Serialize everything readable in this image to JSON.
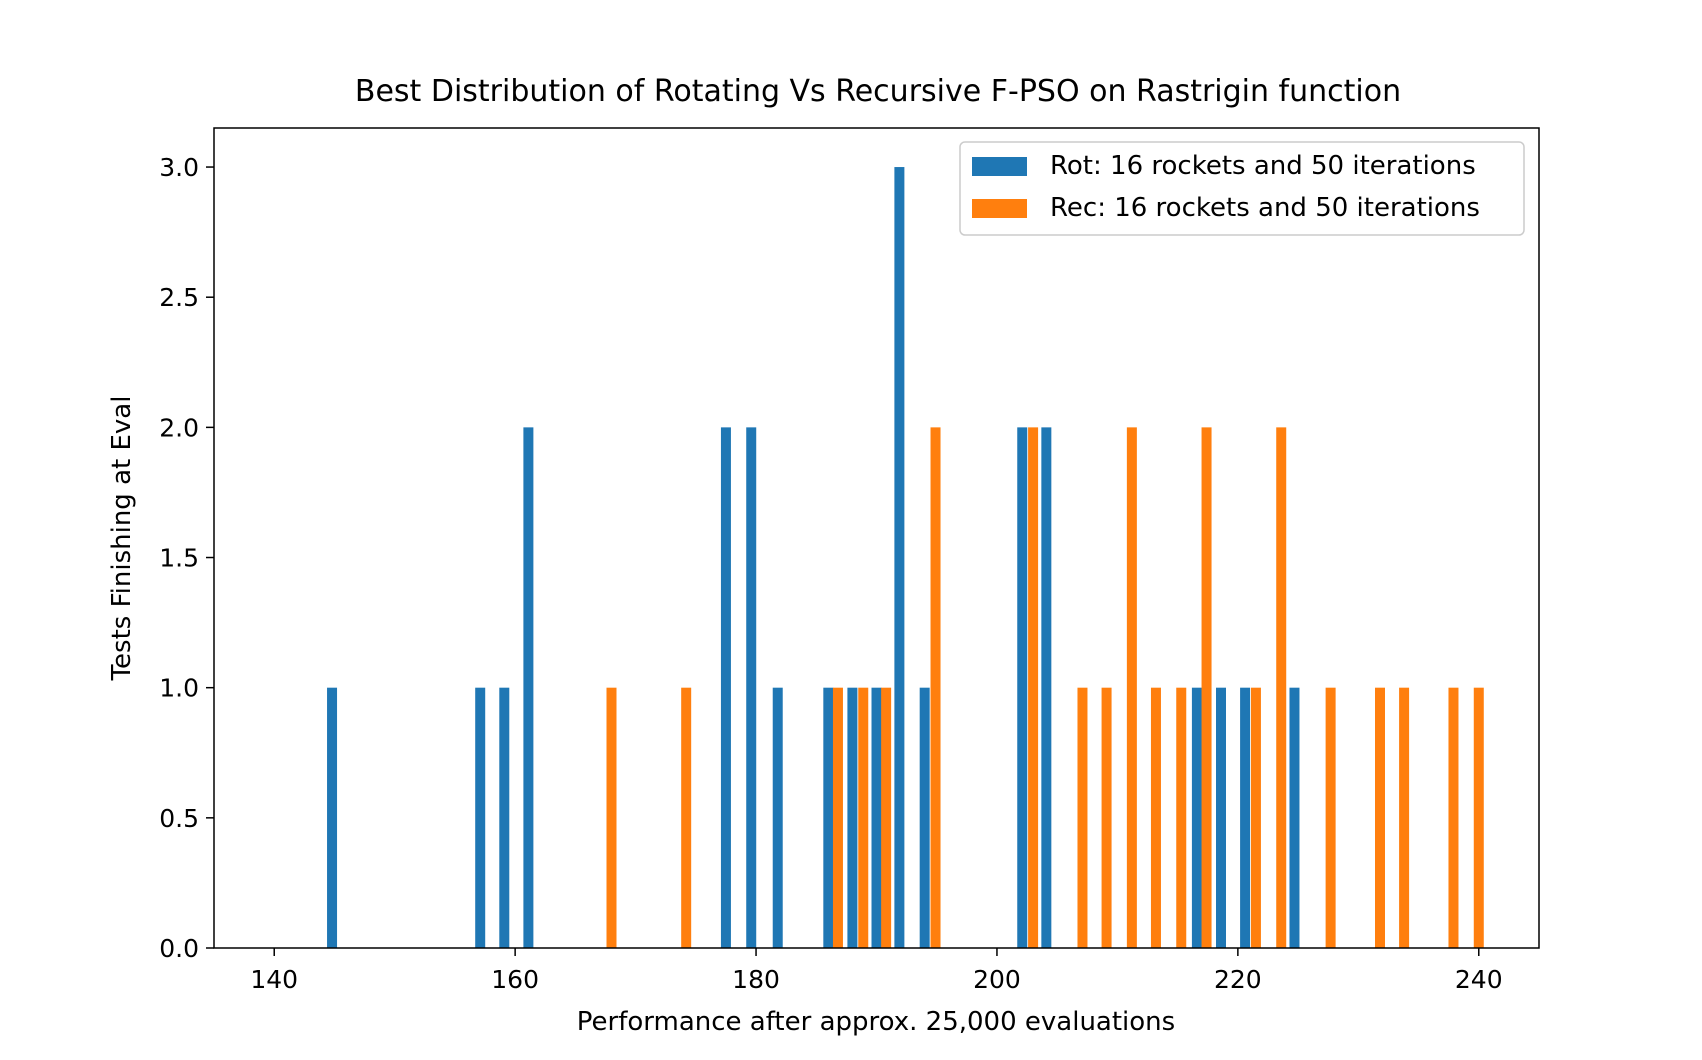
{
  "chart_data": {
    "type": "bar",
    "title": "Best Distribution of Rotating Vs Recursive F-PSO on Rastrigin function",
    "xlabel": "Performance after approx. 25,000 evaluations",
    "ylabel": "Tests Finishing at Eval",
    "xlim": [
      135,
      245
    ],
    "ylim": [
      0,
      3.15
    ],
    "xticks": [
      140,
      160,
      180,
      200,
      220,
      240
    ],
    "xtick_labels": [
      "140",
      "160",
      "180",
      "200",
      "220",
      "240"
    ],
    "yticks": [
      0,
      0.5,
      1,
      1.5,
      2,
      2.5,
      3
    ],
    "ytick_labels": [
      "0.0",
      "0.5",
      "1.0",
      "1.5",
      "2.0",
      "2.5",
      "3.0"
    ],
    "grid": false,
    "legend_position": "top-right",
    "series": [
      {
        "name": "Rot: 16 rockets and 50 iterations",
        "color": "#1f77b4",
        "x": [
          144.8,
          157.1,
          159.1,
          161.1,
          177.5,
          179.6,
          181.8,
          186.0,
          188.0,
          190.0,
          191.9,
          194.0,
          202.1,
          204.1,
          216.6,
          218.6,
          220.6,
          224.7
        ],
        "values": [
          1,
          1,
          1,
          2,
          2,
          2,
          1,
          1,
          1,
          1,
          3,
          1,
          2,
          2,
          1,
          1,
          1,
          1
        ]
      },
      {
        "name": "Rec: 16 rockets and 50 iterations",
        "color": "#ff7f0e",
        "x": [
          168.0,
          174.2,
          186.8,
          188.9,
          190.8,
          194.9,
          203.0,
          207.1,
          209.1,
          211.2,
          213.2,
          215.3,
          217.4,
          221.5,
          223.6,
          227.7,
          231.8,
          233.8,
          237.9,
          240.0
        ],
        "values": [
          1,
          1,
          1,
          1,
          1,
          2,
          2,
          1,
          1,
          2,
          1,
          1,
          2,
          1,
          2,
          1,
          1,
          1,
          1,
          1
        ]
      }
    ]
  }
}
